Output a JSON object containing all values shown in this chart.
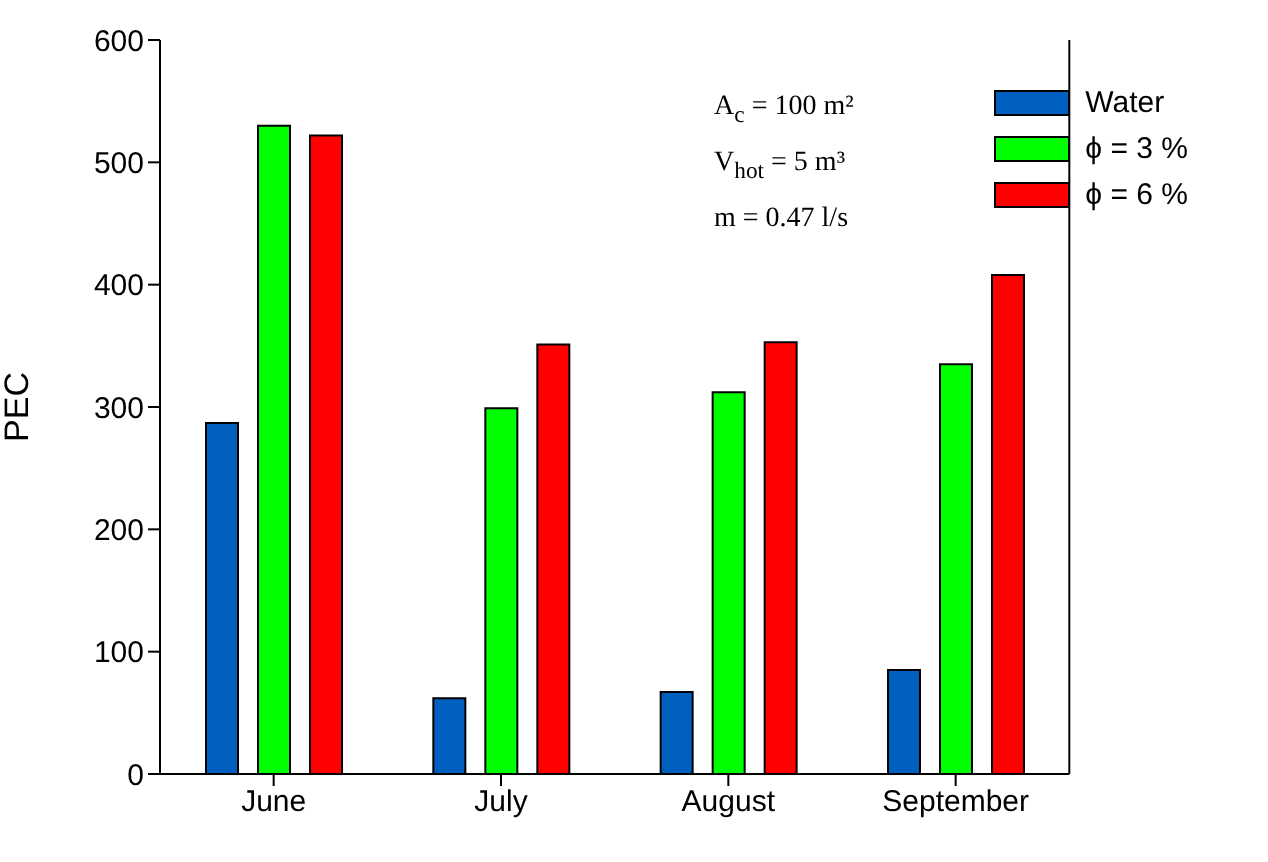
{
  "chart_data": {
    "type": "bar",
    "ylabel": "PEC",
    "categories": [
      "June",
      "July",
      "August",
      "September"
    ],
    "series": [
      {
        "name": "Water",
        "color": "#0060c0",
        "values": [
          287,
          62,
          67,
          85
        ]
      },
      {
        "name": "ϕ = 3 %",
        "color": "#00ff00",
        "values": [
          530,
          299,
          312,
          335
        ]
      },
      {
        "name": "ϕ = 6 %",
        "color": "#ff0000",
        "values": [
          522,
          351,
          353,
          408
        ]
      }
    ],
    "ylim": [
      0,
      600
    ],
    "yticks": [
      0,
      100,
      200,
      300,
      400,
      500,
      600
    ],
    "grid": false,
    "legend": "top right",
    "annotations": [
      "A$_{c}$ = 100 m²",
      "V$_{hot}$ = 5 m³",
      "m = 0.47 l/s"
    ]
  }
}
